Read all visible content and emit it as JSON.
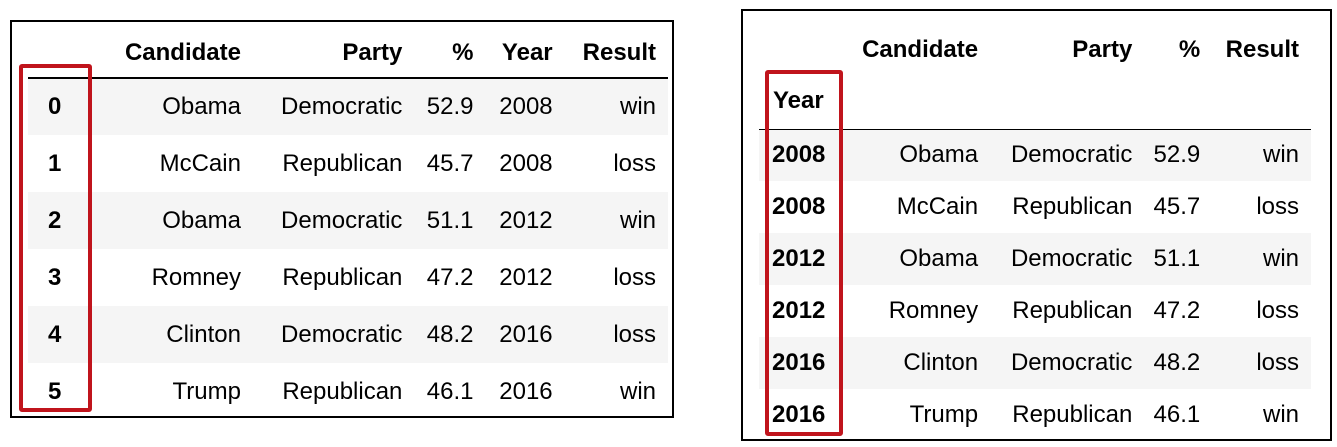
{
  "left_table": {
    "columns": [
      "",
      "Candidate",
      "Party",
      "%",
      "Year",
      "Result"
    ],
    "rows": [
      {
        "index": "0",
        "candidate": "Obama",
        "party": "Democratic",
        "pct": "52.9",
        "year": "2008",
        "result": "win"
      },
      {
        "index": "1",
        "candidate": "McCain",
        "party": "Republican",
        "pct": "45.7",
        "year": "2008",
        "result": "loss"
      },
      {
        "index": "2",
        "candidate": "Obama",
        "party": "Democratic",
        "pct": "51.1",
        "year": "2012",
        "result": "win"
      },
      {
        "index": "3",
        "candidate": "Romney",
        "party": "Republican",
        "pct": "47.2",
        "year": "2012",
        "result": "loss"
      },
      {
        "index": "4",
        "candidate": "Clinton",
        "party": "Democratic",
        "pct": "48.2",
        "year": "2016",
        "result": "loss"
      },
      {
        "index": "5",
        "candidate": "Trump",
        "party": "Republican",
        "pct": "46.1",
        "year": "2016",
        "result": "win"
      }
    ]
  },
  "right_table": {
    "columns": [
      "",
      "Candidate",
      "Party",
      "%",
      "Result"
    ],
    "index_name": "Year",
    "rows": [
      {
        "index": "2008",
        "candidate": "Obama",
        "party": "Democratic",
        "pct": "52.9",
        "result": "win"
      },
      {
        "index": "2008",
        "candidate": "McCain",
        "party": "Republican",
        "pct": "45.7",
        "result": "loss"
      },
      {
        "index": "2012",
        "candidate": "Obama",
        "party": "Democratic",
        "pct": "51.1",
        "result": "win"
      },
      {
        "index": "2012",
        "candidate": "Romney",
        "party": "Republican",
        "pct": "47.2",
        "result": "loss"
      },
      {
        "index": "2016",
        "candidate": "Clinton",
        "party": "Democratic",
        "pct": "48.2",
        "result": "loss"
      },
      {
        "index": "2016",
        "candidate": "Trump",
        "party": "Republican",
        "pct": "46.1",
        "result": "win"
      }
    ]
  },
  "colors": {
    "highlight": "#c0141c",
    "stripe": "#f5f5f5"
  }
}
